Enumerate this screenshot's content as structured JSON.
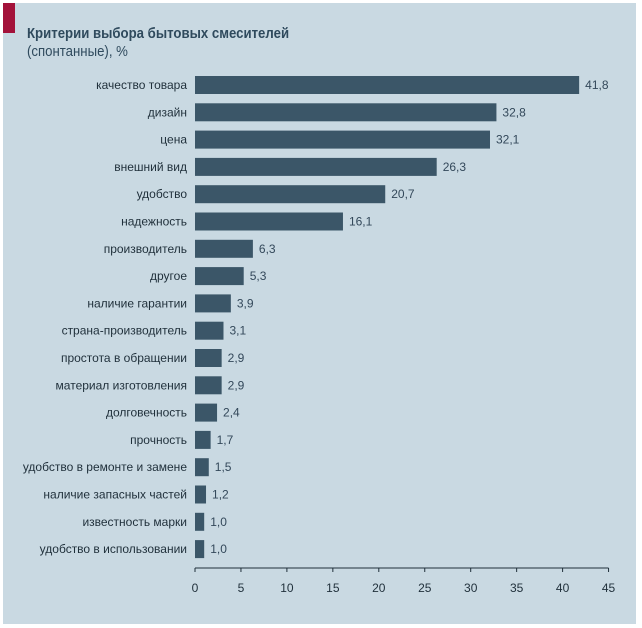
{
  "title": "Критерии выбора бытовых смесителей",
  "subtitle": "(спонтанные), %",
  "colors": {
    "background": "#c9d9e2",
    "bar": "#3b5668",
    "accent": "#a3123a",
    "title": "#2f4a5d"
  },
  "chart_data": {
    "type": "bar",
    "orientation": "horizontal",
    "title": "Критерии выбора бытовых смесителей",
    "subtitle": "(спонтанные), %",
    "xlim": [
      0,
      45
    ],
    "x_ticks": [
      0,
      5,
      10,
      15,
      20,
      25,
      30,
      35,
      40,
      45
    ],
    "grid": false,
    "categories": [
      "качество товара",
      "дизайн",
      "цена",
      "внешний вид",
      "удобство",
      "надежность",
      "производитель",
      "другое",
      "наличие гарантии",
      "страна-производитель",
      "простота в обращении",
      "материал изготовления",
      "долговечность",
      "прочность",
      "удобство в ремонте и замене",
      "наличие запасных частей",
      "известность марки",
      "удобство в использовании"
    ],
    "values": [
      41.8,
      32.8,
      32.1,
      26.3,
      20.7,
      16.1,
      6.3,
      5.3,
      3.9,
      3.1,
      2.9,
      2.9,
      2.4,
      1.7,
      1.5,
      1.2,
      1.0,
      1.0
    ],
    "value_labels": [
      "41,8",
      "32,8",
      "32,1",
      "26,3",
      "20,7",
      "16,1",
      "6,3",
      "5,3",
      "3,9",
      "3,1",
      "2,9",
      "2,9",
      "2,4",
      "1,7",
      "1,5",
      "1,2",
      "1,0",
      "1,0"
    ]
  }
}
